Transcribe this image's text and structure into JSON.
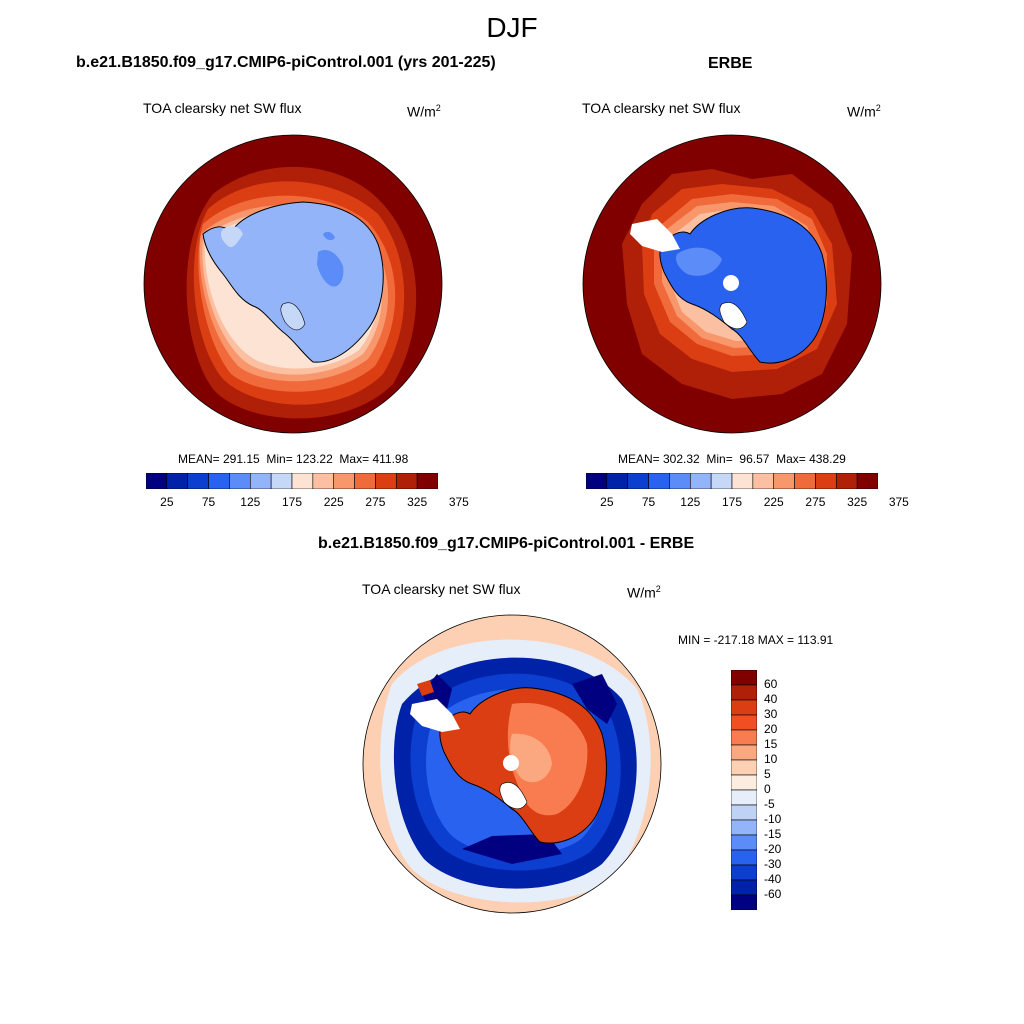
{
  "figure_title": "DJF",
  "panels": {
    "model": {
      "title": "b.e21.B1850.f09_g17.CMIP6-piControl.001 (yrs 201-225)",
      "variable": "TOA clearsky net SW flux",
      "units_base": "W/m",
      "units_exp": "2",
      "stats": "MEAN= 291.15  Min= 123.22  Max= 411.98"
    },
    "obs": {
      "title": "ERBE",
      "variable": "TOA clearsky net SW flux",
      "units_base": "W/m",
      "units_exp": "2",
      "stats": "MEAN= 302.32  Min=  96.57  Max= 438.29"
    },
    "diff": {
      "title": "b.e21.B1850.f09_g17.CMIP6-piControl.001 - ERBE",
      "variable": "TOA clearsky net SW flux",
      "units_base": "W/m",
      "units_exp": "2",
      "stats": "MIN = -217.18 MAX = 113.91"
    }
  },
  "colorbar_abs": {
    "colors": [
      "#000080",
      "#0022a8",
      "#0c3ed0",
      "#2a62f0",
      "#5c8cf8",
      "#93b4f8",
      "#c6d8f8",
      "#fde3d3",
      "#fbc0a2",
      "#f8966c",
      "#f06a3c",
      "#dc3e14",
      "#b02008",
      "#800000"
    ],
    "labels": [
      "25",
      "75",
      "125",
      "175",
      "225",
      "275",
      "325",
      "375"
    ]
  },
  "colorbar_diff": {
    "colors": [
      "#800000",
      "#b02008",
      "#dc3e14",
      "#f04f24",
      "#f87c50",
      "#fba77f",
      "#fdd0b4",
      "#fdece0",
      "#e6eefa",
      "#bfd2f6",
      "#93b4f8",
      "#5c8cf8",
      "#2a62f0",
      "#0c3ed0",
      "#0022a8",
      "#000080"
    ],
    "labels": [
      "60",
      "40",
      "30",
      "20",
      "15",
      "10",
      "5",
      "0",
      "-5",
      "-10",
      "-15",
      "-20",
      "-30",
      "-40",
      "-60"
    ]
  }
}
